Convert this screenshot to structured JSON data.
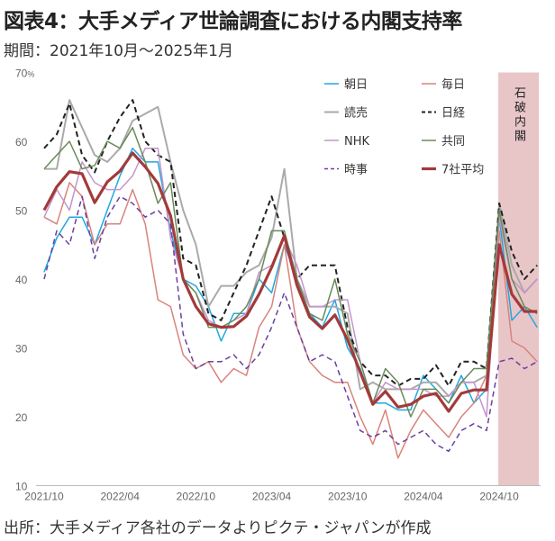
{
  "header": {
    "title": "図表4：大手メディア世論調査における内閣支持率",
    "subtitle": "期間：2021年10月～2025年1月"
  },
  "footer": {
    "source": "出所：大手メディア各社のデータよりピクテ・ジャパンが作成"
  },
  "chart_data": {
    "type": "line",
    "title": "図表4：大手メディア世論調査における内閣支持率",
    "xlabel": "",
    "ylabel": "%",
    "ylim": [
      10,
      70
    ],
    "y_ticks": [
      "10",
      "20",
      "30",
      "40",
      "50",
      "60",
      "70"
    ],
    "y_unit": "%",
    "x_ticks": [
      {
        "index": 0,
        "label": "2021/10"
      },
      {
        "index": 6,
        "label": "2022/04"
      },
      {
        "index": 12,
        "label": "2022/10"
      },
      {
        "index": 18,
        "label": "2023/04"
      },
      {
        "index": 24,
        "label": "2023/10"
      },
      {
        "index": 30,
        "label": "2024/04"
      },
      {
        "index": 36,
        "label": "2024/10"
      }
    ],
    "x_range": [
      "2021/10",
      "2025/01"
    ],
    "legend_position": "top-right",
    "shaded_region": {
      "from_index": 36,
      "to_index": 39,
      "label": "石破内閣",
      "color": "#e8c6c8"
    },
    "series": [
      {
        "name": "朝日",
        "color": "#1fa8e0",
        "dash": false,
        "width": 1.5,
        "values": [
          41,
          46,
          49,
          49,
          45,
          50,
          55,
          59,
          57,
          57,
          47,
          40,
          39,
          36,
          31,
          35,
          35,
          40,
          38,
          45,
          40,
          35,
          33,
          37,
          30,
          27,
          22,
          22,
          21,
          21,
          26,
          24,
          22,
          26,
          22,
          24,
          49,
          34,
          36,
          33
        ]
      },
      {
        "name": "毎日",
        "color": "#d9837c",
        "dash": false,
        "width": 1.5,
        "values": [
          49,
          48,
          54,
          52,
          45,
          48,
          48,
          53,
          48,
          37,
          36,
          29,
          27,
          28,
          25,
          27,
          26,
          33,
          36,
          45,
          33,
          28,
          26,
          25,
          25,
          20,
          16,
          21,
          14,
          18,
          21,
          19,
          17,
          20,
          22,
          26,
          47,
          31,
          30,
          28
        ]
      },
      {
        "name": "読売",
        "color": "#aaaaaa",
        "dash": false,
        "width": 2,
        "values": [
          56,
          56,
          66,
          62,
          58,
          57,
          59,
          63,
          64,
          65,
          57,
          50,
          45,
          36,
          39,
          39,
          41,
          42,
          46,
          56,
          40,
          36,
          36,
          36,
          35,
          24,
          25,
          24,
          24,
          24,
          25,
          25,
          23,
          25,
          25,
          26,
          51,
          42,
          38,
          40
        ]
      },
      {
        "name": "日経",
        "color": "#222222",
        "dash": true,
        "width": 2,
        "values": [
          59,
          61,
          65.5,
          58,
          55.5,
          60,
          63.5,
          66,
          60,
          58,
          57,
          43,
          42,
          35,
          34,
          38,
          42,
          47,
          52,
          46,
          40,
          42,
          42,
          42,
          33,
          28,
          26,
          26,
          24.5,
          25.5,
          25.5,
          27.5,
          24.5,
          28,
          28,
          27,
          51,
          44,
          40,
          42
        ]
      },
      {
        "name": "NHK",
        "color": "#c595cc",
        "dash": false,
        "width": 1.5,
        "values": [
          49,
          53,
          50,
          57,
          54,
          53,
          53,
          55,
          59,
          59,
          46,
          40,
          38,
          34,
          33,
          34,
          35,
          41,
          42,
          46,
          42,
          36,
          36,
          37,
          37,
          28,
          22,
          25,
          24,
          24,
          24,
          23,
          23,
          25,
          25,
          20,
          49,
          40,
          38,
          40
        ]
      },
      {
        "name": "共同",
        "color": "#6a8a5a",
        "dash": false,
        "width": 1.5,
        "values": [
          56,
          58,
          60,
          56,
          56.5,
          60,
          59,
          62,
          57,
          51,
          54,
          40,
          38,
          33,
          33,
          34,
          36,
          40,
          47,
          47,
          40,
          35,
          34,
          40,
          32,
          28,
          22,
          27,
          25,
          20,
          24,
          24,
          22,
          25,
          27,
          27,
          50,
          40,
          36,
          35
        ]
      },
      {
        "name": "時事",
        "color": "#6a3fa0",
        "dash": true,
        "width": 1.5,
        "values": [
          40,
          47,
          45,
          52,
          43,
          49,
          52,
          51,
          49,
          50,
          48,
          32,
          27,
          28,
          28,
          29,
          27,
          29,
          33,
          38,
          33,
          28,
          29,
          28,
          23,
          18,
          17,
          18,
          16,
          17,
          18,
          16,
          15,
          18,
          19,
          18,
          28,
          28.5,
          27,
          28
        ]
      },
      {
        "name": "7社平均",
        "color": "#a33a3a",
        "dash": false,
        "width": 3.2,
        "values": [
          50,
          53.4,
          55.6,
          55.3,
          51.1,
          54.1,
          55.7,
          58.3,
          56.3,
          53.9,
          49.2,
          40,
          36,
          33.5,
          33,
          33.1,
          34.6,
          37.8,
          41.7,
          46.3,
          39.1,
          34.5,
          32.8,
          34.8,
          31.2,
          26.5,
          21.8,
          23.7,
          21.4,
          21.8,
          23,
          23.4,
          20.8,
          23.4,
          23.9,
          23.9,
          45,
          37.8,
          35.3,
          35.3
        ]
      }
    ]
  }
}
